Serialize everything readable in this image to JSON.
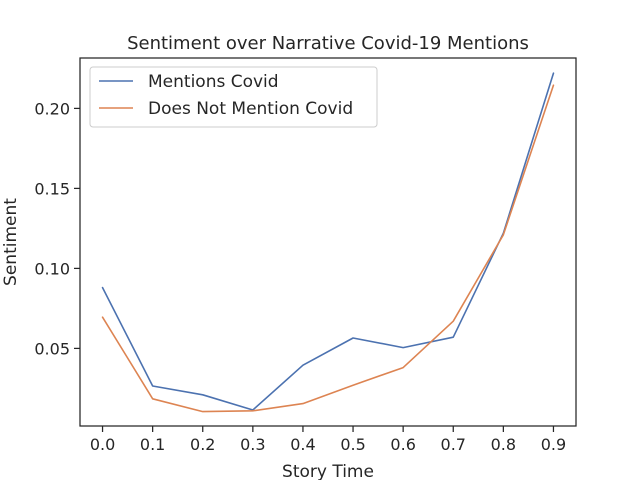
{
  "chart_data": {
    "type": "line",
    "title": "Sentiment over Narrative Covid-19 Mentions",
    "xlabel": "Story Time",
    "ylabel": "Sentiment",
    "x": [
      0.0,
      0.1,
      0.2,
      0.3,
      0.4,
      0.5,
      0.6,
      0.7,
      0.8,
      0.9
    ],
    "xlim": [
      -0.045,
      0.945
    ],
    "ylim": [
      0.0015,
      0.2315
    ],
    "xticks": [
      0.0,
      0.1,
      0.2,
      0.3,
      0.4,
      0.5,
      0.6,
      0.7,
      0.8,
      0.9
    ],
    "xtick_labels": [
      "0.0",
      "0.1",
      "0.2",
      "0.3",
      "0.4",
      "0.5",
      "0.6",
      "0.7",
      "0.8",
      "0.9"
    ],
    "yticks": [
      0.05,
      0.1,
      0.15,
      0.2
    ],
    "ytick_labels": [
      "0.05",
      "0.10",
      "0.15",
      "0.20"
    ],
    "grid": false,
    "legend_position": "top-left",
    "series": [
      {
        "name": "Mentions Covid",
        "color": "#4c72b0",
        "values": [
          0.088,
          0.0265,
          0.021,
          0.0115,
          0.0395,
          0.0565,
          0.0505,
          0.057,
          0.122,
          0.222
        ]
      },
      {
        "name": "Does Not Mention Covid",
        "color": "#dd8452",
        "values": [
          0.0695,
          0.0185,
          0.0105,
          0.011,
          0.0155,
          0.027,
          0.038,
          0.067,
          0.121,
          0.2145
        ]
      }
    ]
  }
}
